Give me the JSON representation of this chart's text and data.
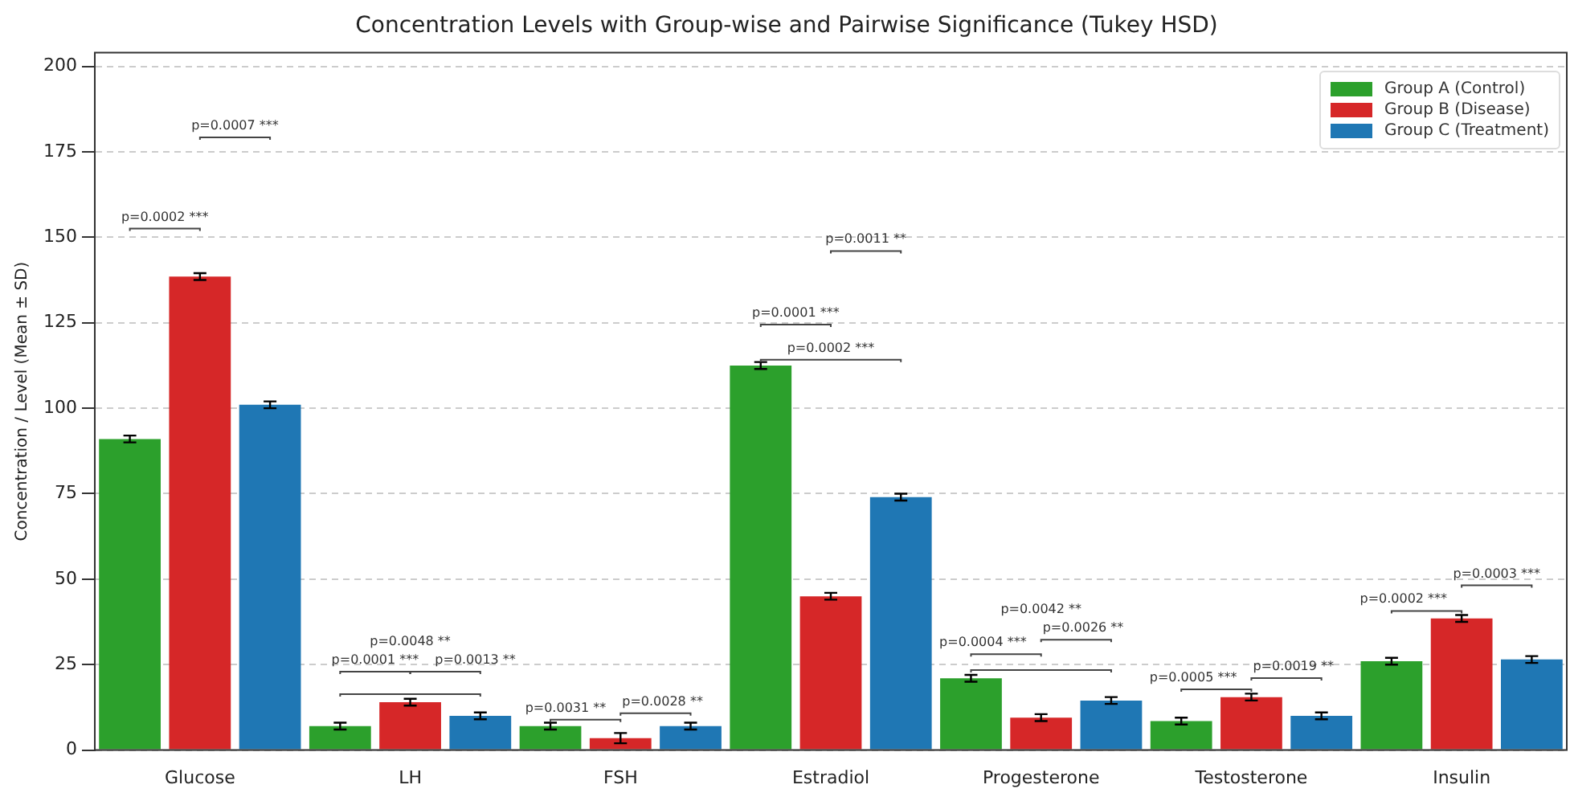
{
  "chart_data": {
    "type": "bar",
    "title": "Concentration Levels with Group-wise and Pairwise Significance (Tukey HSD)",
    "ylabel": "Concentration / Level (Mean ± SD)",
    "categories": [
      "Glucose",
      "LH",
      "FSH",
      "Estradiol",
      "Progesterone",
      "Testosterone",
      "Insulin"
    ],
    "series": [
      {
        "name": "Group A (Control)",
        "color": "#2ca02c",
        "values": [
          91,
          7,
          7,
          112.5,
          21,
          8.5,
          26
        ],
        "errors": [
          1,
          1,
          1,
          1,
          1,
          1,
          1
        ]
      },
      {
        "name": "Group B (Disease)",
        "color": "#d62728",
        "values": [
          138.5,
          14,
          3.5,
          45,
          9.5,
          15.5,
          38.5
        ],
        "errors": [
          1,
          1,
          1.5,
          1,
          1,
          1,
          1
        ]
      },
      {
        "name": "Group C (Treatment)",
        "color": "#1f77b4",
        "values": [
          101,
          10,
          7,
          74,
          14.5,
          10,
          26.5
        ],
        "errors": [
          1,
          1,
          1,
          1,
          1,
          1,
          1
        ]
      }
    ],
    "ylim": [
      0,
      204
    ],
    "yticks": [
      0,
      25,
      50,
      75,
      100,
      125,
      150,
      175,
      200
    ],
    "grid": "y",
    "legend": "top right",
    "annotations": [
      "p=0.0002 ***",
      "p=0.0007 ***",
      "p=0.0001 ***",
      "p=0.0013 **",
      "p=0.0048 **",
      "p=0.0031 **",
      "p=0.0028 **",
      "p=0.0001 ***",
      "p=0.0011 **",
      "p=0.0002 ***",
      "p=0.0004 ***",
      "p=0.0026 **",
      "p=0.0042 **",
      "p=0.0005 ***",
      "p=0.0019 **",
      "p=0.0002 ***",
      "p=0.0003 ***"
    ]
  }
}
